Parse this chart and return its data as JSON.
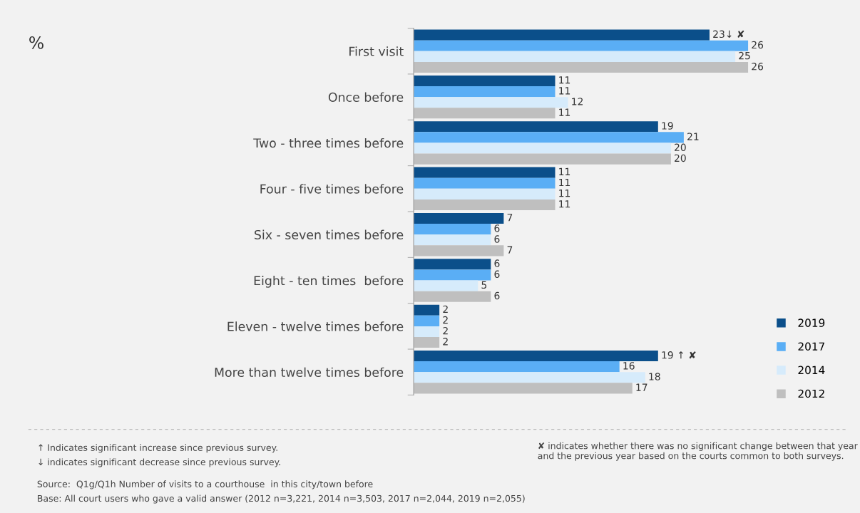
{
  "chart_data": {
    "type": "bar",
    "orientation": "horizontal",
    "categories": [
      "First visit",
      "Once before",
      "Two - three times before",
      "Four - five times before",
      "Six - seven times before",
      "Eight - ten times  before",
      "Eleven - twelve times before",
      "More than twelve times before"
    ],
    "series": [
      {
        "name": "2019",
        "color": "#0b4f8a",
        "values": [
          23,
          11,
          19,
          11,
          7,
          6,
          2,
          19
        ],
        "value_labels": [
          "23↓ ✘",
          "11",
          "19",
          "11",
          "7",
          "6",
          "2",
          "19 ↑ ✘"
        ]
      },
      {
        "name": "2017",
        "color": "#5aaef5",
        "values": [
          26,
          11,
          21,
          11,
          6,
          6,
          2,
          16
        ]
      },
      {
        "name": "2014",
        "color": "#d6ebfb",
        "values": [
          25,
          12,
          20,
          11,
          6,
          5,
          2,
          18
        ]
      },
      {
        "name": "2012",
        "color": "#bfbfbf",
        "values": [
          26,
          11,
          20,
          11,
          7,
          6,
          2,
          17
        ]
      }
    ],
    "data_labels": true,
    "legend": "bottom right",
    "grid": false,
    "annotations": [
      "%",
      "↑ Indicates significant increase since previous survey.",
      "↓ indicates significant decrease since previous survey.",
      "✘ indicates whether there was no significant change between that year and the previous year based on the courts common to both surveys.",
      "Source:  Q1g/Q1h Number of visits to a courthouse  in this city/town before",
      "Base: All court users who gave a valid answer (2012 n=3,221, 2014 n=3,503, 2017 n=2,044, 2019 n=2,055)"
    ]
  }
}
